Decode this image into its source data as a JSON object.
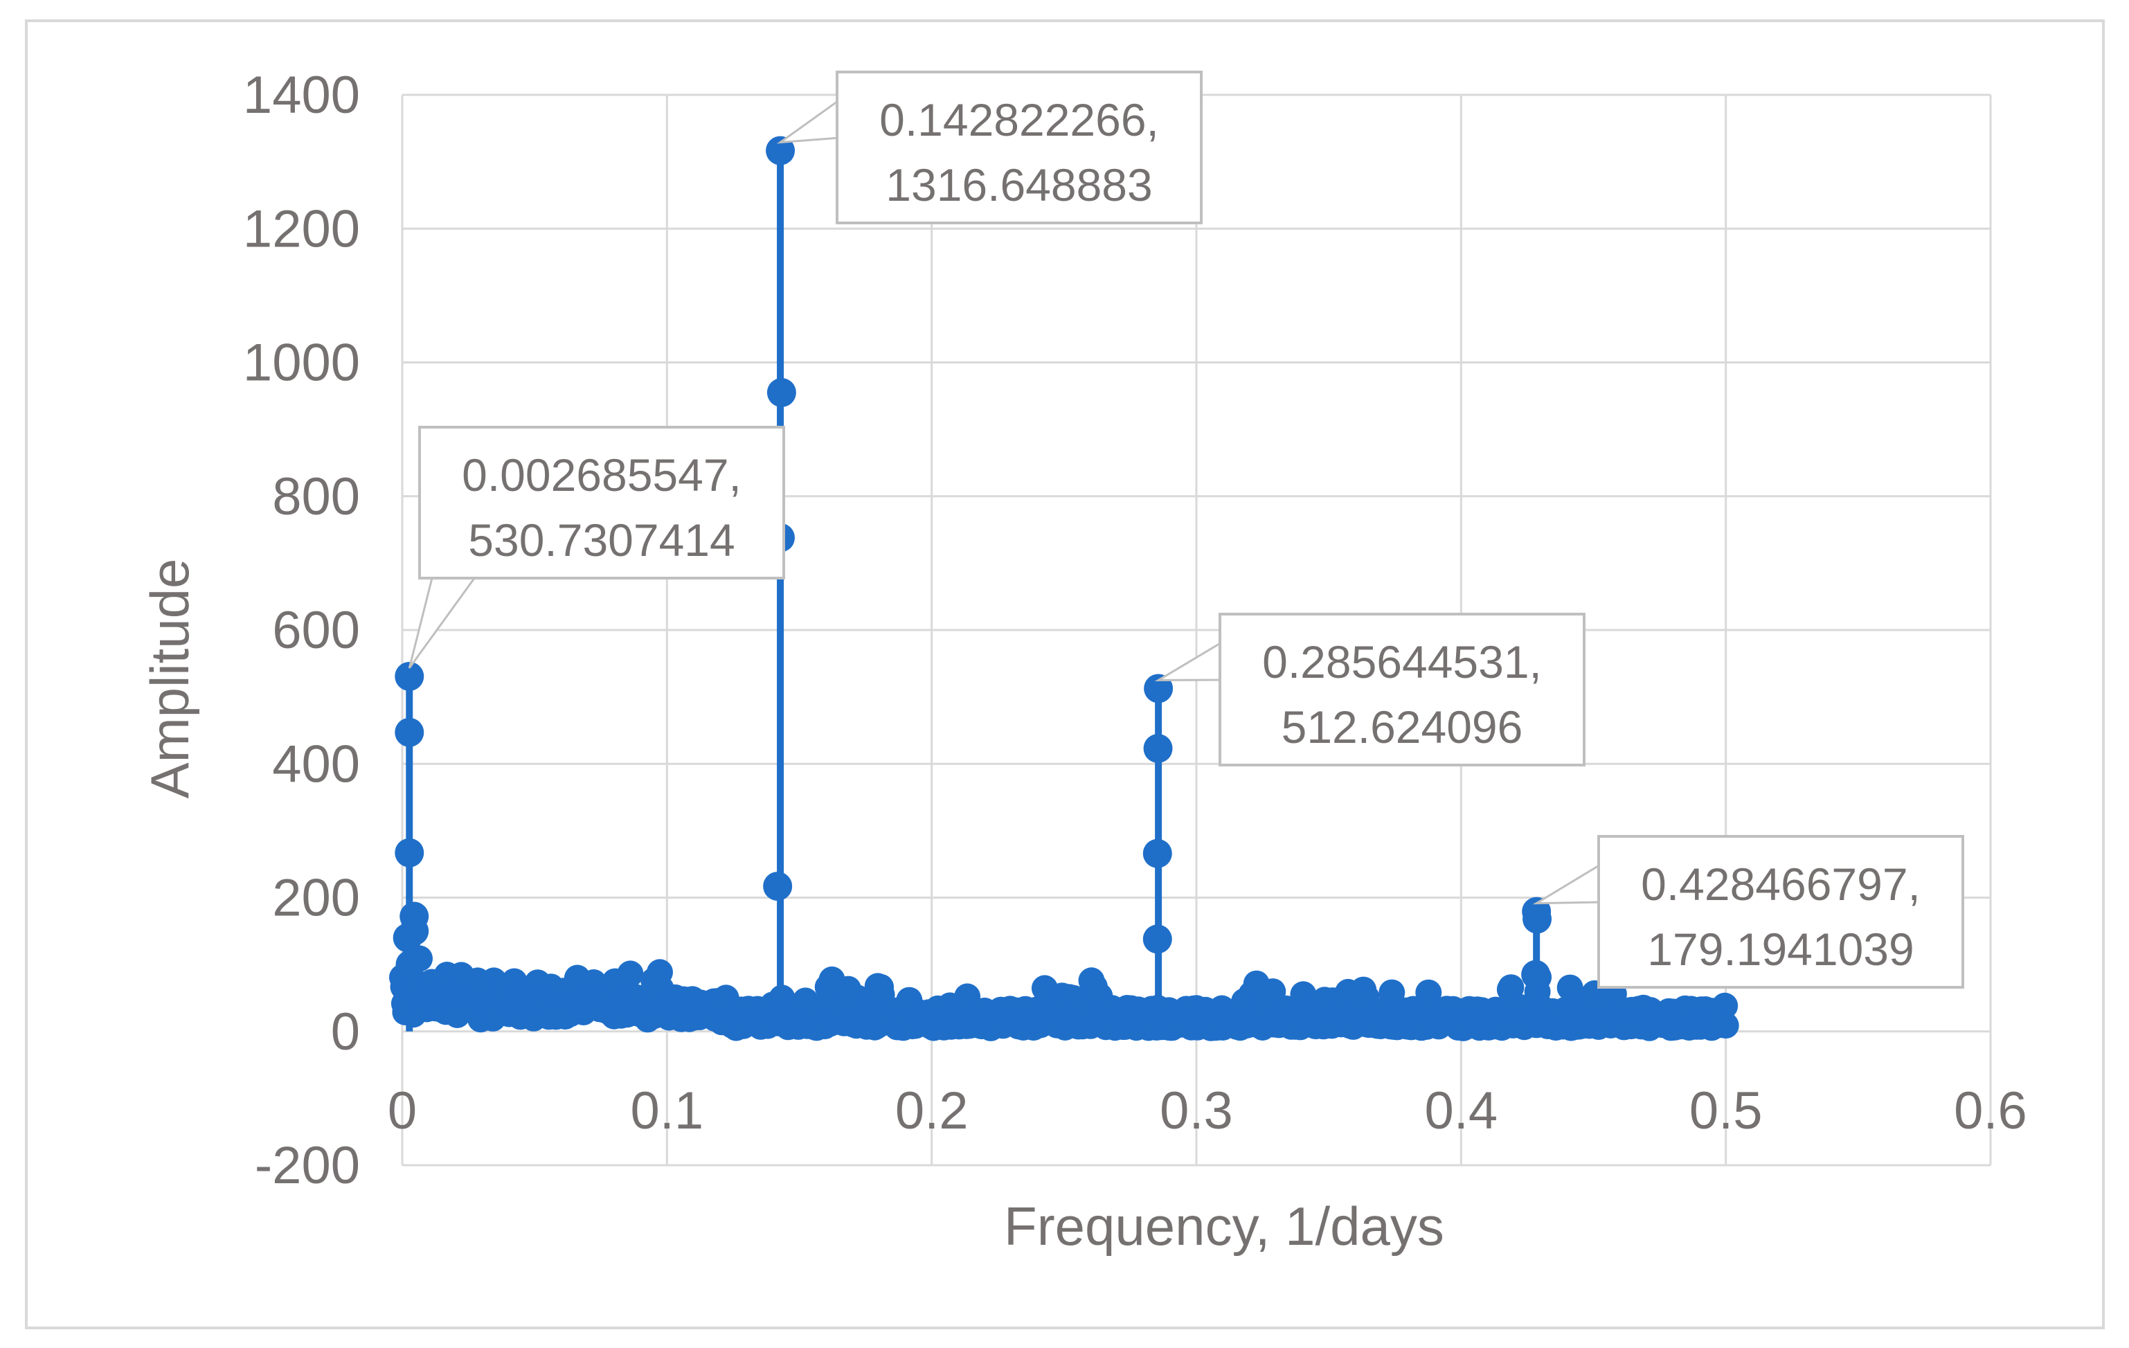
{
  "chart_data": {
    "type": "scatter",
    "title": "",
    "xlabel": "Frequency, 1/days",
    "ylabel": "Amplitude",
    "xlim": [
      0,
      0.6
    ],
    "ylim": [
      -200,
      1400
    ],
    "xticks": [
      0,
      0.1,
      0.2,
      0.3,
      0.4,
      0.5,
      0.6
    ],
    "xtick_labels": [
      "0",
      "0.1",
      "0.2",
      "0.3",
      "0.4",
      "0.5",
      "0.6"
    ],
    "yticks": [
      -200,
      0,
      200,
      400,
      600,
      800,
      1000,
      1200,
      1400
    ],
    "ytick_labels": [
      "-200",
      "0",
      "200",
      "400",
      "600",
      "800",
      "1000",
      "1200",
      "1400"
    ],
    "grid": true,
    "legend": "none",
    "marker": "circle",
    "line": "straight lines with markers",
    "series_color": "#1f6fc9",
    "gridline_color": "#d9d9d9",
    "text_color": "#767171",
    "peaks": [
      {
        "x": 0.002685547,
        "y": 530.7307414
      },
      {
        "x": 0.142822266,
        "y": 1316.648883
      },
      {
        "x": 0.285644531,
        "y": 512.624096
      },
      {
        "x": 0.428466797,
        "y": 179.1941039
      }
    ],
    "annotations": [
      {
        "line1": "0.002685547,",
        "line2": "530.7307414",
        "x": 0.002685547,
        "y": 530.7307414
      },
      {
        "line1": "0.142822266,",
        "line2": "1316.648883",
        "x": 0.142822266,
        "y": 1316.648883
      },
      {
        "line1": "0.285644531,",
        "line2": "512.624096",
        "x": 0.285644531,
        "y": 512.624096
      },
      {
        "line1": "0.428466797,",
        "line2": "179.1941039",
        "x": 0.428466797,
        "y": 179.1941039
      }
    ],
    "peak_series_points": [
      {
        "x": 0.002685547,
        "y": 530.7
      },
      {
        "x": 0.002685547,
        "y": 447
      },
      {
        "x": 0.002685547,
        "y": 267
      },
      {
        "x": 0.0045,
        "y": 172
      },
      {
        "x": 0.0045,
        "y": 150
      },
      {
        "x": 0.002,
        "y": 140
      },
      {
        "x": 0.003,
        "y": 100
      },
      {
        "x": 0.142822266,
        "y": 1316.6
      },
      {
        "x": 0.1433,
        "y": 955
      },
      {
        "x": 0.1428,
        "y": 738
      },
      {
        "x": 0.1418,
        "y": 217
      },
      {
        "x": 0.285644531,
        "y": 512.6
      },
      {
        "x": 0.2855,
        "y": 423
      },
      {
        "x": 0.2853,
        "y": 266
      },
      {
        "x": 0.2853,
        "y": 138
      },
      {
        "x": 0.428466797,
        "y": 179.2
      },
      {
        "x": 0.4287,
        "y": 168
      },
      {
        "x": 0.4282,
        "y": 85
      }
    ],
    "baseline_amplitude_range": [
      0,
      110
    ],
    "x_extent": [
      0,
      0.5
    ]
  }
}
